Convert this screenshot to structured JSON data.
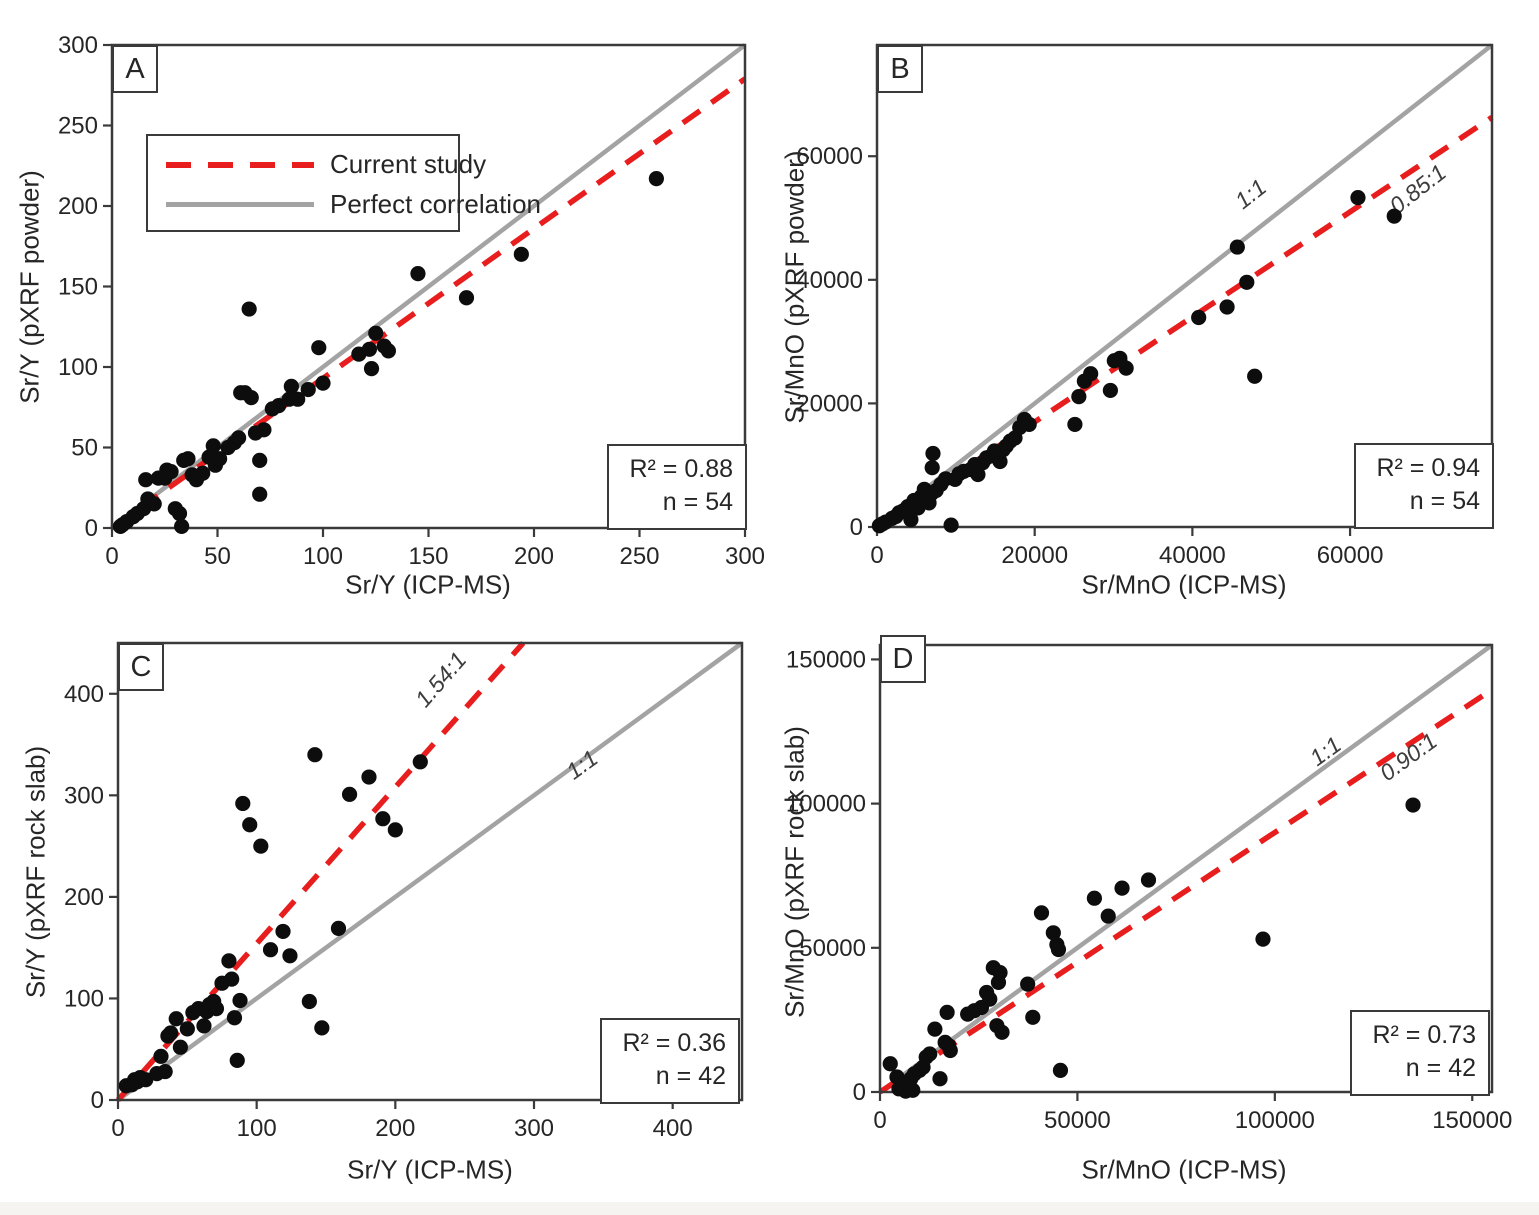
{
  "colors": {
    "fit_red": "#e81d1d",
    "identity_gray": "#a3a3a3",
    "frame": "#3a3a3a",
    "point": "#0d0d0d",
    "tick_text": "#262626",
    "line_label_text": "#3d3d3d"
  },
  "legend": {
    "items": [
      {
        "label": "Current study",
        "style": "dashed-red"
      },
      {
        "label": "Perfect correlation",
        "style": "solid-gray"
      }
    ]
  },
  "chart_data": [
    {
      "type": "scatter",
      "letter": "A",
      "xlabel": "Sr/Y (ICP-MS)",
      "ylabel": "Sr/Y (pXRF powder)",
      "xlim": [
        0,
        300
      ],
      "ylim": [
        0,
        300
      ],
      "xticks": [
        0,
        50,
        100,
        150,
        200,
        250,
        300
      ],
      "yticks": [
        0,
        50,
        100,
        150,
        200,
        250,
        300
      ],
      "identity_slope": 1,
      "fit_slope": 0.93,
      "line_labels": [],
      "stats": {
        "r2": "R² = 0.88",
        "n": "n = 54"
      },
      "points": [
        [
          4,
          1
        ],
        [
          5,
          2
        ],
        [
          7,
          4
        ],
        [
          10,
          7
        ],
        [
          12,
          9
        ],
        [
          15,
          12
        ],
        [
          16,
          30
        ],
        [
          17,
          18
        ],
        [
          20,
          15
        ],
        [
          22,
          31
        ],
        [
          25,
          31
        ],
        [
          26,
          36
        ],
        [
          28,
          35
        ],
        [
          30,
          12
        ],
        [
          32,
          9
        ],
        [
          33,
          1
        ],
        [
          34,
          42
        ],
        [
          36,
          43
        ],
        [
          38,
          33
        ],
        [
          40,
          30
        ],
        [
          43,
          34
        ],
        [
          46,
          44
        ],
        [
          48,
          51
        ],
        [
          49,
          39
        ],
        [
          51,
          43
        ],
        [
          55,
          50
        ],
        [
          58,
          53
        ],
        [
          60,
          56
        ],
        [
          61,
          84
        ],
        [
          63,
          84
        ],
        [
          65,
          136
        ],
        [
          66,
          81
        ],
        [
          68,
          59
        ],
        [
          70,
          21
        ],
        [
          70,
          42
        ],
        [
          72,
          61
        ],
        [
          76,
          74
        ],
        [
          79,
          76
        ],
        [
          84,
          80
        ],
        [
          85,
          88
        ],
        [
          88,
          80
        ],
        [
          93,
          86
        ],
        [
          98,
          112
        ],
        [
          100,
          90
        ],
        [
          117,
          108
        ],
        [
          122,
          111
        ],
        [
          123,
          99
        ],
        [
          125,
          121
        ],
        [
          129,
          113
        ],
        [
          131,
          110
        ],
        [
          145,
          158
        ],
        [
          168,
          143
        ],
        [
          194,
          170
        ],
        [
          258,
          217
        ]
      ]
    },
    {
      "type": "scatter",
      "letter": "B",
      "xlabel": "Sr/MnO (ICP-MS)",
      "ylabel": "Sr/MnO (pXRF powder)",
      "xlim": [
        0,
        78000
      ],
      "ylim": [
        0,
        78000
      ],
      "xticks": [
        0,
        20000,
        40000,
        60000
      ],
      "yticks": [
        0,
        20000,
        40000,
        60000
      ],
      "identity_slope": 1,
      "fit_slope": 0.85,
      "line_labels": [
        {
          "text": "1:1",
          "x": 48000,
          "y": 52900,
          "rot": -38
        },
        {
          "text": "0.85:1",
          "x": 69200,
          "y": 53700,
          "rot": -38
        }
      ],
      "stats": {
        "r2": "R² = 0.94",
        "n": "n = 54"
      },
      "points": [
        [
          300,
          200
        ],
        [
          700,
          500
        ],
        [
          1100,
          800
        ],
        [
          1900,
          1400
        ],
        [
          2400,
          1700
        ],
        [
          2800,
          2300
        ],
        [
          3300,
          2600
        ],
        [
          3900,
          3300
        ],
        [
          4300,
          1200
        ],
        [
          4700,
          4300
        ],
        [
          5200,
          3100
        ],
        [
          5600,
          4900
        ],
        [
          6000,
          6100
        ],
        [
          6600,
          3900
        ],
        [
          6900,
          5400
        ],
        [
          7000,
          9600
        ],
        [
          7100,
          11900
        ],
        [
          7500,
          5900
        ],
        [
          8100,
          6900
        ],
        [
          8700,
          7800
        ],
        [
          9400,
          300
        ],
        [
          9900,
          7700
        ],
        [
          10400,
          8600
        ],
        [
          11000,
          9000
        ],
        [
          11900,
          9300
        ],
        [
          12400,
          10100
        ],
        [
          12800,
          8500
        ],
        [
          13400,
          10400
        ],
        [
          13900,
          11200
        ],
        [
          14500,
          11500
        ],
        [
          14900,
          12300
        ],
        [
          15600,
          10600
        ],
        [
          16000,
          12500
        ],
        [
          16400,
          13100
        ],
        [
          16900,
          13900
        ],
        [
          17500,
          14400
        ],
        [
          18100,
          16100
        ],
        [
          18700,
          17400
        ],
        [
          19300,
          16600
        ],
        [
          25100,
          16600
        ],
        [
          25600,
          21100
        ],
        [
          26300,
          23600
        ],
        [
          27100,
          24800
        ],
        [
          29600,
          22100
        ],
        [
          30100,
          26900
        ],
        [
          30800,
          27300
        ],
        [
          31600,
          25700
        ],
        [
          40800,
          33900
        ],
        [
          44400,
          35600
        ],
        [
          45700,
          45300
        ],
        [
          46900,
          39600
        ],
        [
          47900,
          24400
        ],
        [
          61000,
          53300
        ],
        [
          65600,
          50300
        ]
      ]
    },
    {
      "type": "scatter",
      "letter": "C",
      "xlabel": "Sr/Y (ICP-MS)",
      "ylabel": "Sr/Y (pXRF rock slab)",
      "xlim": [
        0,
        450
      ],
      "ylim": [
        0,
        450
      ],
      "xticks": [
        0,
        100,
        200,
        300,
        400
      ],
      "yticks": [
        0,
        100,
        200,
        300,
        400
      ],
      "identity_slope": 1,
      "fit_slope": 1.54,
      "line_labels": [
        {
          "text": "1.54:1",
          "x": 237,
          "y": 409,
          "rot": -49
        },
        {
          "text": "1:1",
          "x": 338,
          "y": 324,
          "rot": -36
        }
      ],
      "stats": {
        "r2": "R² = 0.36",
        "n": "n = 42"
      },
      "points": [
        [
          6,
          14
        ],
        [
          10,
          15
        ],
        [
          12,
          20
        ],
        [
          14,
          18
        ],
        [
          16,
          22
        ],
        [
          20,
          20
        ],
        [
          28,
          26
        ],
        [
          31,
          43
        ],
        [
          34,
          28
        ],
        [
          36,
          63
        ],
        [
          38,
          66
        ],
        [
          42,
          80
        ],
        [
          45,
          52
        ],
        [
          50,
          70
        ],
        [
          54,
          86
        ],
        [
          58,
          90
        ],
        [
          62,
          73
        ],
        [
          64,
          87
        ],
        [
          66,
          94
        ],
        [
          69,
          97
        ],
        [
          71,
          90
        ],
        [
          75,
          115
        ],
        [
          80,
          137
        ],
        [
          82,
          119
        ],
        [
          84,
          81
        ],
        [
          86,
          39
        ],
        [
          88,
          98
        ],
        [
          90,
          292
        ],
        [
          95,
          271
        ],
        [
          103,
          250
        ],
        [
          110,
          148
        ],
        [
          119,
          166
        ],
        [
          124,
          142
        ],
        [
          138,
          97
        ],
        [
          142,
          340
        ],
        [
          147,
          71
        ],
        [
          159,
          169
        ],
        [
          167,
          301
        ],
        [
          181,
          318
        ],
        [
          191,
          277
        ],
        [
          200,
          266
        ],
        [
          218,
          333
        ]
      ]
    },
    {
      "type": "scatter",
      "letter": "D",
      "xlabel": "Sr/MnO (ICP-MS)",
      "ylabel": "Sr/MnO (pXRF rock slab)",
      "xlim": [
        0,
        155000
      ],
      "ylim": [
        0,
        155000
      ],
      "xticks": [
        0,
        50000,
        100000,
        150000
      ],
      "yticks": [
        0,
        50000,
        100000,
        150000
      ],
      "identity_slope": 1,
      "fit_slope": 0.9,
      "line_labels": [
        {
          "text": "1:1",
          "x": 114000,
          "y": 116000,
          "rot": -36
        },
        {
          "text": "0.90:1",
          "x": 135000,
          "y": 114000,
          "rot": -36
        }
      ],
      "stats": {
        "r2": "R² = 0.73",
        "n": "n = 42"
      },
      "points": [
        [
          2600,
          9800
        ],
        [
          4300,
          5200
        ],
        [
          4800,
          1100
        ],
        [
          6100,
          1700
        ],
        [
          6500,
          300
        ],
        [
          7000,
          3400
        ],
        [
          7800,
          4600
        ],
        [
          8300,
          600
        ],
        [
          8700,
          6300
        ],
        [
          10000,
          7500
        ],
        [
          10900,
          8600
        ],
        [
          11700,
          12100
        ],
        [
          12600,
          13200
        ],
        [
          13900,
          21800
        ],
        [
          15200,
          4600
        ],
        [
          16500,
          17200
        ],
        [
          17000,
          27600
        ],
        [
          17400,
          16100
        ],
        [
          17800,
          14400
        ],
        [
          22200,
          27000
        ],
        [
          23900,
          28200
        ],
        [
          25700,
          29300
        ],
        [
          27000,
          34500
        ],
        [
          27800,
          32200
        ],
        [
          28700,
          43100
        ],
        [
          29600,
          23000
        ],
        [
          30000,
          38000
        ],
        [
          30400,
          41400
        ],
        [
          30900,
          20700
        ],
        [
          37400,
          37400
        ],
        [
          38700,
          25900
        ],
        [
          40900,
          62100
        ],
        [
          43900,
          55200
        ],
        [
          44800,
          51100
        ],
        [
          45200,
          49400
        ],
        [
          45700,
          7500
        ],
        [
          54300,
          67200
        ],
        [
          57800,
          61000
        ],
        [
          61300,
          70700
        ],
        [
          68000,
          73500
        ],
        [
          97000,
          53000
        ],
        [
          135000,
          99500
        ]
      ]
    }
  ]
}
